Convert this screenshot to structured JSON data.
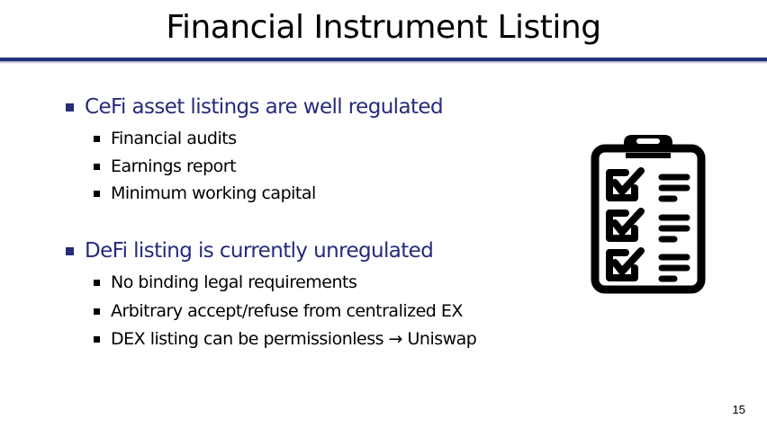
{
  "slide": {
    "title": "Financial Instrument Listing",
    "page_number": "15"
  },
  "sections": [
    {
      "heading": "CeFi asset listings are well regulated",
      "items": [
        "Financial audits",
        "Earnings report",
        "Minimum working capital"
      ]
    },
    {
      "heading": "DeFi listing is currently unregulated",
      "items": [
        "No binding legal requirements",
        "Arbitrary accept/refuse from centralized EX",
        "DEX listing can be permissionless → Uniswap"
      ]
    }
  ],
  "icons": {
    "clipboard": "clipboard-checklist-icon"
  },
  "colors": {
    "accent": "#1f2f7a",
    "heading_text": "#262b7a",
    "body_text": "#000000"
  }
}
